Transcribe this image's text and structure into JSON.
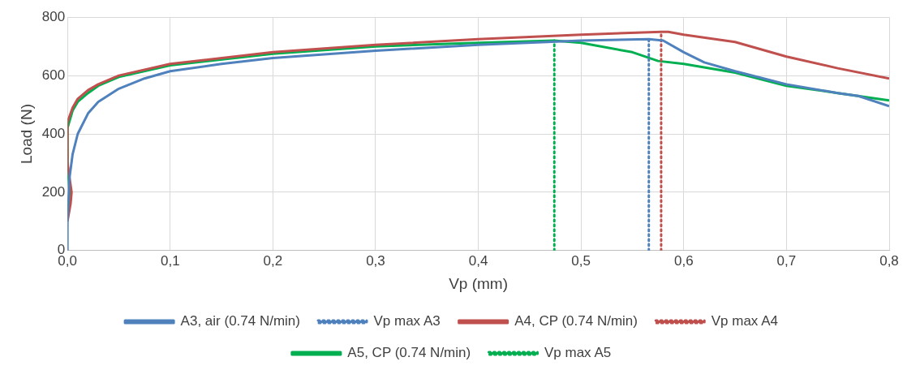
{
  "chart_data": {
    "type": "line",
    "xlabel": "Vp (mm)",
    "ylabel": "Load (N)",
    "xlim": [
      0,
      0.8
    ],
    "ylim": [
      0,
      800
    ],
    "xticks": [
      {
        "value": 0,
        "label": "0,0"
      },
      {
        "value": 0.1,
        "label": "0,1"
      },
      {
        "value": 0.2,
        "label": "0,2"
      },
      {
        "value": 0.3,
        "label": "0,3"
      },
      {
        "value": 0.4,
        "label": "0,4"
      },
      {
        "value": 0.5,
        "label": "0,5"
      },
      {
        "value": 0.6,
        "label": "0,6"
      },
      {
        "value": 0.7,
        "label": "0,7"
      },
      {
        "value": 0.8,
        "label": "0,8"
      }
    ],
    "yticks": [
      0,
      200,
      400,
      600,
      800
    ],
    "grid": true,
    "legend": "bottom",
    "marker": "none",
    "series": [
      {
        "name": "A3, air (0.74 N/min)",
        "color": "#4f81bd",
        "line_style": "solid",
        "x": [
          0,
          0,
          0.002,
          0.005,
          0.01,
          0.02,
          0.03,
          0.05,
          0.075,
          0.1,
          0.15,
          0.2,
          0.3,
          0.4,
          0.5,
          0.566,
          0.58,
          0.6,
          0.62,
          0.65,
          0.7,
          0.75,
          0.77,
          0.8
        ],
        "values": [
          0,
          100,
          250,
          330,
          400,
          470,
          510,
          555,
          590,
          615,
          640,
          660,
          685,
          705,
          720,
          725,
          720,
          680,
          645,
          615,
          570,
          540,
          530,
          495
        ]
      },
      {
        "name": "Vp max A3",
        "color": "#4f81bd",
        "line_style": "dotted",
        "x": [
          0.566,
          0.566
        ],
        "values": [
          0,
          725
        ]
      },
      {
        "name": "A4, CP (0.74 N/min)",
        "color": "#c0504d",
        "line_style": "solid",
        "x": [
          0,
          0.003,
          0.004,
          0.002,
          0,
          0,
          0.005,
          0.01,
          0.02,
          0.03,
          0.05,
          0.1,
          0.2,
          0.3,
          0.4,
          0.5,
          0.578,
          0.585,
          0.6,
          0.65,
          0.7,
          0.75,
          0.8
        ],
        "values": [
          100,
          160,
          200,
          250,
          300,
          440,
          490,
          520,
          550,
          570,
          600,
          640,
          680,
          705,
          725,
          740,
          750,
          750,
          740,
          715,
          665,
          625,
          590
        ]
      },
      {
        "name": "Vp max A4",
        "color": "#c0504d",
        "line_style": "dotted",
        "x": [
          0.578,
          0.578
        ],
        "values": [
          0,
          750
        ]
      },
      {
        "name": "A5, CP (0.74 N/min)",
        "color": "#00b050",
        "line_style": "solid",
        "x": [
          0,
          0.002,
          0,
          0,
          0.005,
          0.01,
          0.02,
          0.03,
          0.05,
          0.1,
          0.2,
          0.3,
          0.4,
          0.474,
          0.5,
          0.55,
          0.575,
          0.6,
          0.65,
          0.7,
          0.75,
          0.8
        ],
        "values": [
          110,
          200,
          300,
          420,
          480,
          510,
          540,
          565,
          595,
          635,
          675,
          700,
          712,
          720,
          712,
          680,
          650,
          640,
          610,
          565,
          540,
          515
        ]
      },
      {
        "name": "Vp max A5",
        "color": "#00b050",
        "line_style": "dotted",
        "x": [
          0.474,
          0.474
        ],
        "values": [
          0,
          720
        ]
      }
    ]
  }
}
